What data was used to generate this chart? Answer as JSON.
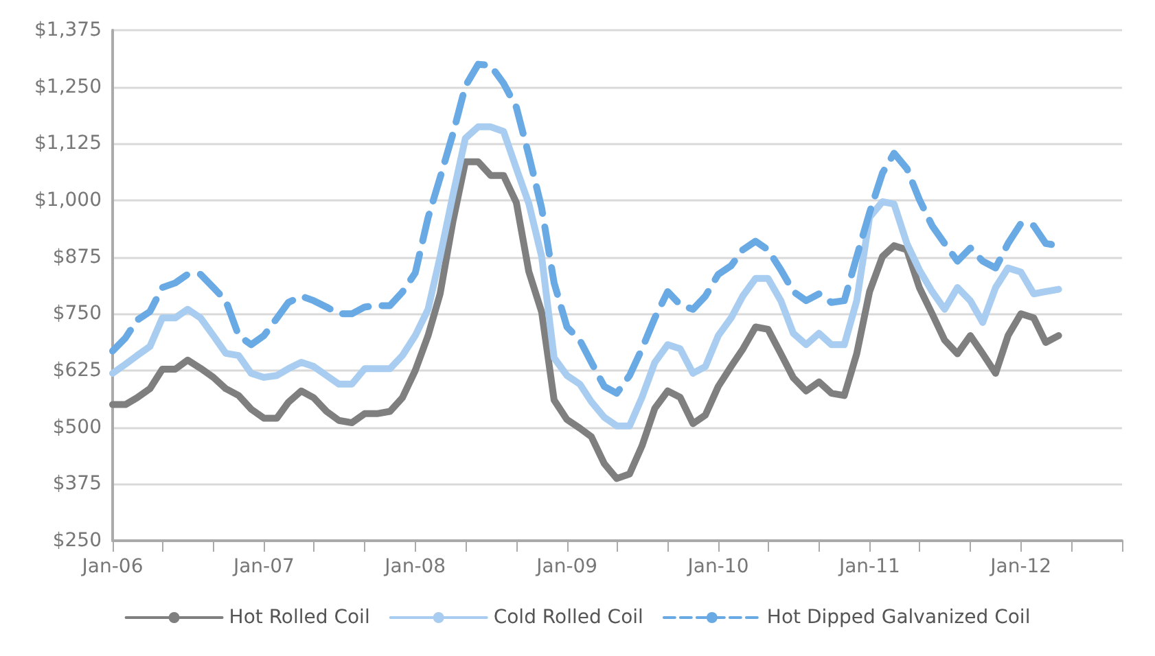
{
  "chart_data": {
    "type": "line",
    "x": [
      "2006-01",
      "2006-02",
      "2006-03",
      "2006-04",
      "2006-05",
      "2006-06",
      "2006-07",
      "2006-08",
      "2006-09",
      "2006-10",
      "2006-11",
      "2006-12",
      "2007-01",
      "2007-02",
      "2007-03",
      "2007-04",
      "2007-05",
      "2007-06",
      "2007-07",
      "2007-08",
      "2007-09",
      "2007-10",
      "2007-11",
      "2007-12",
      "2008-01",
      "2008-02",
      "2008-03",
      "2008-04",
      "2008-05",
      "2008-06",
      "2008-07",
      "2008-08",
      "2008-09",
      "2008-10",
      "2008-11",
      "2008-12",
      "2009-01",
      "2009-02",
      "2009-03",
      "2009-04",
      "2009-05",
      "2009-06",
      "2009-07",
      "2009-08",
      "2009-09",
      "2009-10",
      "2009-11",
      "2009-12",
      "2010-01",
      "2010-02",
      "2010-03",
      "2010-04",
      "2010-05",
      "2010-06",
      "2010-07",
      "2010-08",
      "2010-09",
      "2010-10",
      "2010-11",
      "2010-12",
      "2011-01",
      "2011-02",
      "2011-03",
      "2011-04",
      "2011-05",
      "2011-06",
      "2011-07",
      "2011-08",
      "2011-09",
      "2011-10",
      "2011-11",
      "2011-12",
      "2012-01",
      "2012-02",
      "2012-03",
      "2012-04"
    ],
    "series": [
      {
        "name": "Hot Rolled Coil",
        "color": "#7f7f7f",
        "line_style": "solid",
        "values": [
          550,
          550,
          565,
          585,
          628,
          628,
          648,
          630,
          610,
          585,
          570,
          540,
          520,
          520,
          555,
          580,
          565,
          535,
          515,
          510,
          530,
          530,
          535,
          565,
          625,
          702,
          794,
          954,
          1085,
          1085,
          1055,
          1055,
          995,
          843,
          754,
          560,
          517,
          498,
          479,
          420,
          387,
          397,
          459,
          542,
          580,
          566,
          508,
          527,
          590,
          634,
          672,
          721,
          716,
          662,
          609,
          580,
          600,
          575,
          570,
          662,
          799,
          876,
          900,
          891,
          808,
          750,
          692,
          662,
          702,
          662,
          619,
          702,
          750,
          741,
          687,
          702
        ]
      },
      {
        "name": "Cold Rolled Coil",
        "color": "#a9cdf0",
        "line_style": "solid",
        "values": [
          619,
          639,
          658,
          678,
          741,
          741,
          760,
          741,
          702,
          663,
          658,
          619,
          610,
          614,
          629,
          643,
          634,
          614,
          595,
          595,
          629,
          629,
          629,
          658,
          702,
          760,
          876,
          1012,
          1137,
          1162,
          1162,
          1152,
          1070,
          993,
          876,
          653,
          614,
          595,
          556,
          522,
          503,
          503,
          566,
          643,
          682,
          673,
          619,
          634,
          702,
          741,
          789,
          828,
          828,
          779,
          707,
          682,
          707,
          682,
          682,
          779,
          963,
          997,
          992,
          905,
          847,
          799,
          760,
          808,
          779,
          731,
          808,
          851,
          842,
          794,
          799,
          804
        ]
      },
      {
        "name": "Hot Dipped Galvanized Coil",
        "color": "#6aaae4",
        "line_style": "dashed",
        "values": [
          668,
          697,
          736,
          755,
          808,
          818,
          837,
          837,
          808,
          779,
          702,
          682,
          702,
          740,
          775,
          789,
          779,
          765,
          750,
          750,
          765,
          768,
          768,
          798,
          840,
          962,
          1050,
          1147,
          1252,
          1300,
          1297,
          1258,
          1205,
          1099,
          983,
          818,
          721,
          692,
          643,
          590,
          575,
          614,
          673,
          741,
          799,
          770,
          760,
          789,
          837,
          856,
          891,
          910,
          891,
          847,
          799,
          779,
          794,
          775,
          779,
          876,
          973,
          1060,
          1104,
          1070,
          1002,
          944,
          905,
          866,
          895,
          866,
          851,
          905,
          949,
          944,
          905,
          900
        ]
      }
    ],
    "xlim": [
      "2006-01",
      "2012-09"
    ],
    "xticks": [
      {
        "value": "2006-01",
        "label": "Jan-06"
      },
      {
        "value": "2006-05",
        "label": null
      },
      {
        "value": "2006-09",
        "label": null
      },
      {
        "value": "2007-01",
        "label": "Jan-07"
      },
      {
        "value": "2007-05",
        "label": null
      },
      {
        "value": "2007-09",
        "label": null
      },
      {
        "value": "2008-01",
        "label": "Jan-08"
      },
      {
        "value": "2008-05",
        "label": null
      },
      {
        "value": "2008-09",
        "label": null
      },
      {
        "value": "2009-01",
        "label": "Jan-09"
      },
      {
        "value": "2009-05",
        "label": null
      },
      {
        "value": "2009-09",
        "label": null
      },
      {
        "value": "2010-01",
        "label": "Jan-10"
      },
      {
        "value": "2010-05",
        "label": null
      },
      {
        "value": "2010-09",
        "label": null
      },
      {
        "value": "2011-01",
        "label": "Jan-11"
      },
      {
        "value": "2011-05",
        "label": null
      },
      {
        "value": "2011-09",
        "label": null
      },
      {
        "value": "2012-01",
        "label": "Jan-12"
      },
      {
        "value": "2012-05",
        "label": null
      },
      {
        "value": "2012-09",
        "label": null
      }
    ],
    "ylim": [
      250,
      1375
    ],
    "yticks": [
      {
        "value": 250,
        "label": "$250"
      },
      {
        "value": 375,
        "label": "$375"
      },
      {
        "value": 500,
        "label": "$500"
      },
      {
        "value": 625,
        "label": "$625"
      },
      {
        "value": 750,
        "label": "$750"
      },
      {
        "value": 875,
        "label": "$875"
      },
      {
        "value": 1000,
        "label": "$1,000"
      },
      {
        "value": 1125,
        "label": "$1,125"
      },
      {
        "value": 1250,
        "label": "$1,250"
      },
      {
        "value": 1375,
        "label": "$1,375"
      }
    ],
    "grid": "y",
    "legend": "bottom",
    "marker": "none"
  }
}
